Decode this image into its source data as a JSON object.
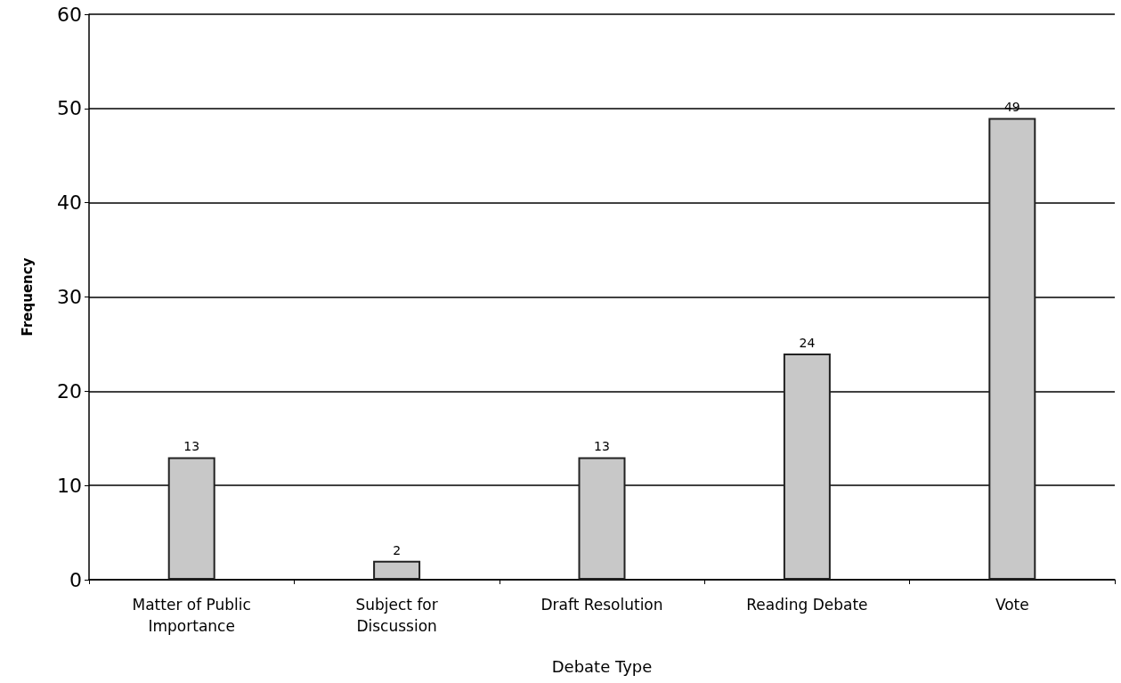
{
  "chart_data": {
    "type": "bar",
    "xlabel": "Debate Type",
    "ylabel": "Frequency",
    "categories": [
      "Matter of Public\nImportance",
      "Subject for\nDiscussion",
      "Draft Resolution",
      "Reading Debate",
      "Vote"
    ],
    "values": [
      13,
      2,
      13,
      24,
      49
    ],
    "color": "#c8c8c8",
    "ylim": [
      0,
      60
    ],
    "yticks": [
      0,
      10,
      20,
      30,
      40,
      50,
      60
    ],
    "grid": "y",
    "data_labels": true
  }
}
